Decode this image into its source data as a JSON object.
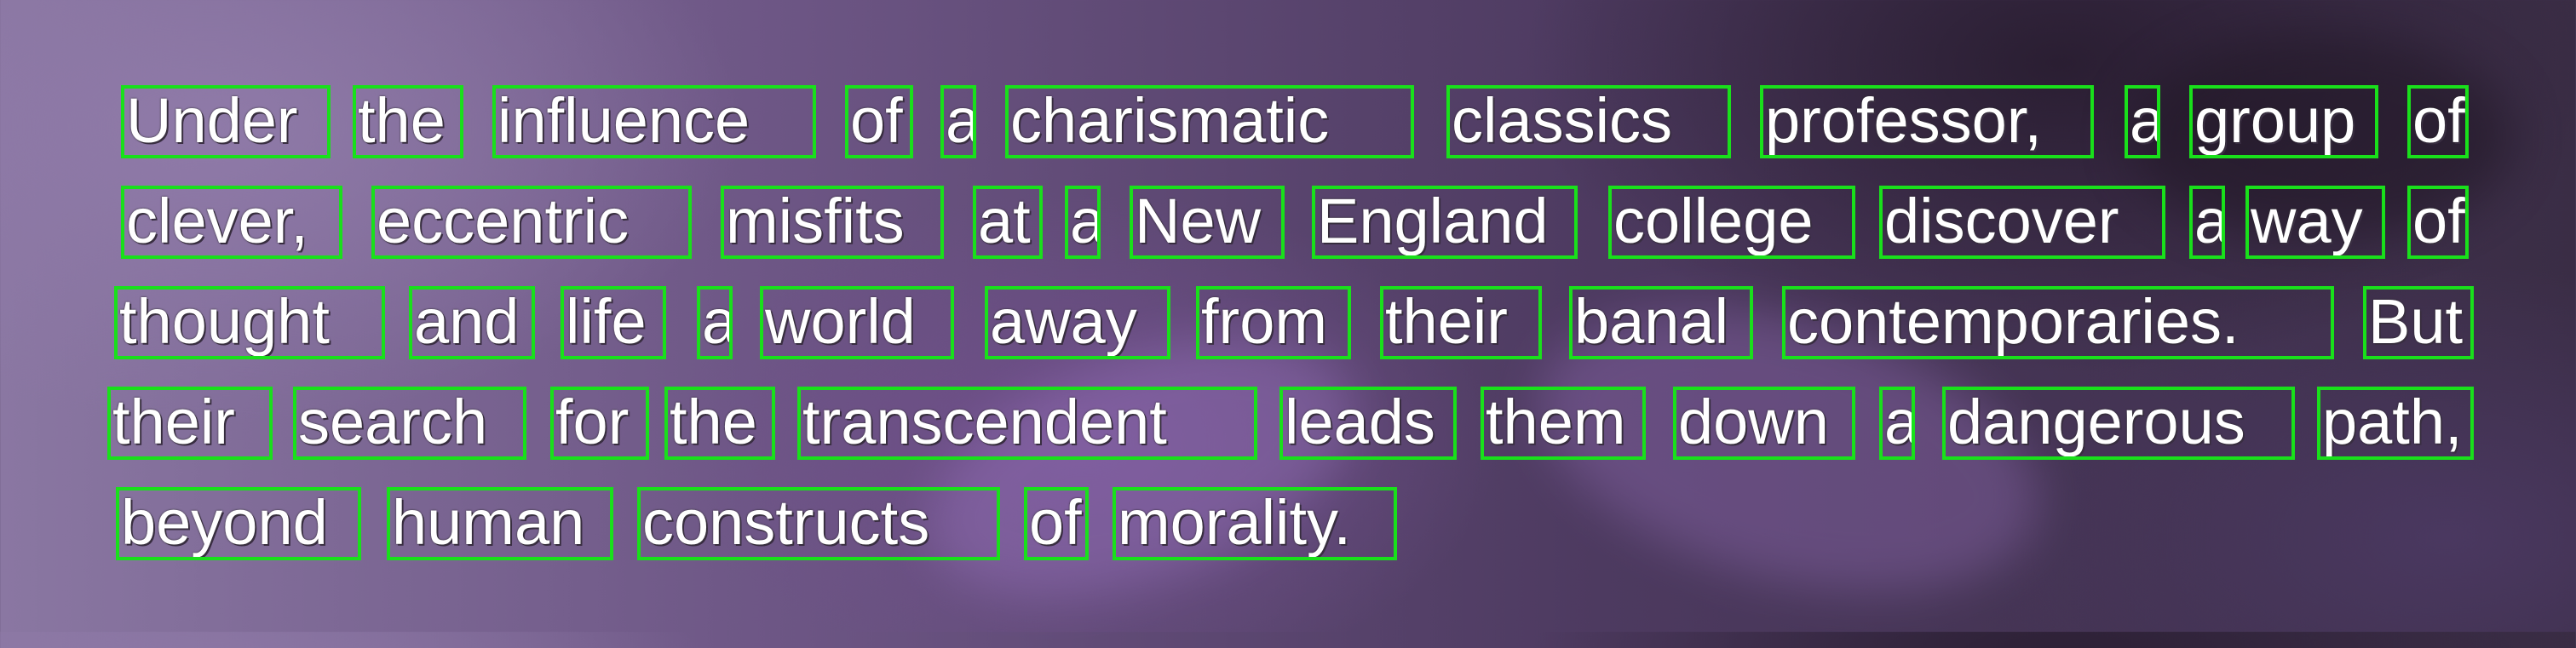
{
  "words": {
    "l1": [
      "Under",
      "the",
      "influence",
      "of",
      "a",
      "charismatic",
      "classics",
      "professor,",
      "a",
      "group",
      "of"
    ],
    "l2": [
      "clever,",
      "eccentric",
      "misfits",
      "at",
      "a",
      "New",
      "England",
      "college",
      "discover",
      "a",
      "way",
      "of"
    ],
    "l3": [
      "thought",
      "and",
      "life",
      "a",
      "world",
      "away",
      "from",
      "their",
      "banal",
      "contemporaries.",
      "But"
    ],
    "l4": [
      "their",
      "search",
      "for",
      "the",
      "transcendent",
      "leads",
      "them",
      "down",
      "a",
      "dangerous",
      "path,"
    ],
    "l5": [
      "beyond",
      "human",
      "constructs",
      "of",
      "morality."
    ]
  },
  "colors": {
    "box": "#19e01b",
    "text": "#ffffff",
    "background": "#6d5685"
  }
}
